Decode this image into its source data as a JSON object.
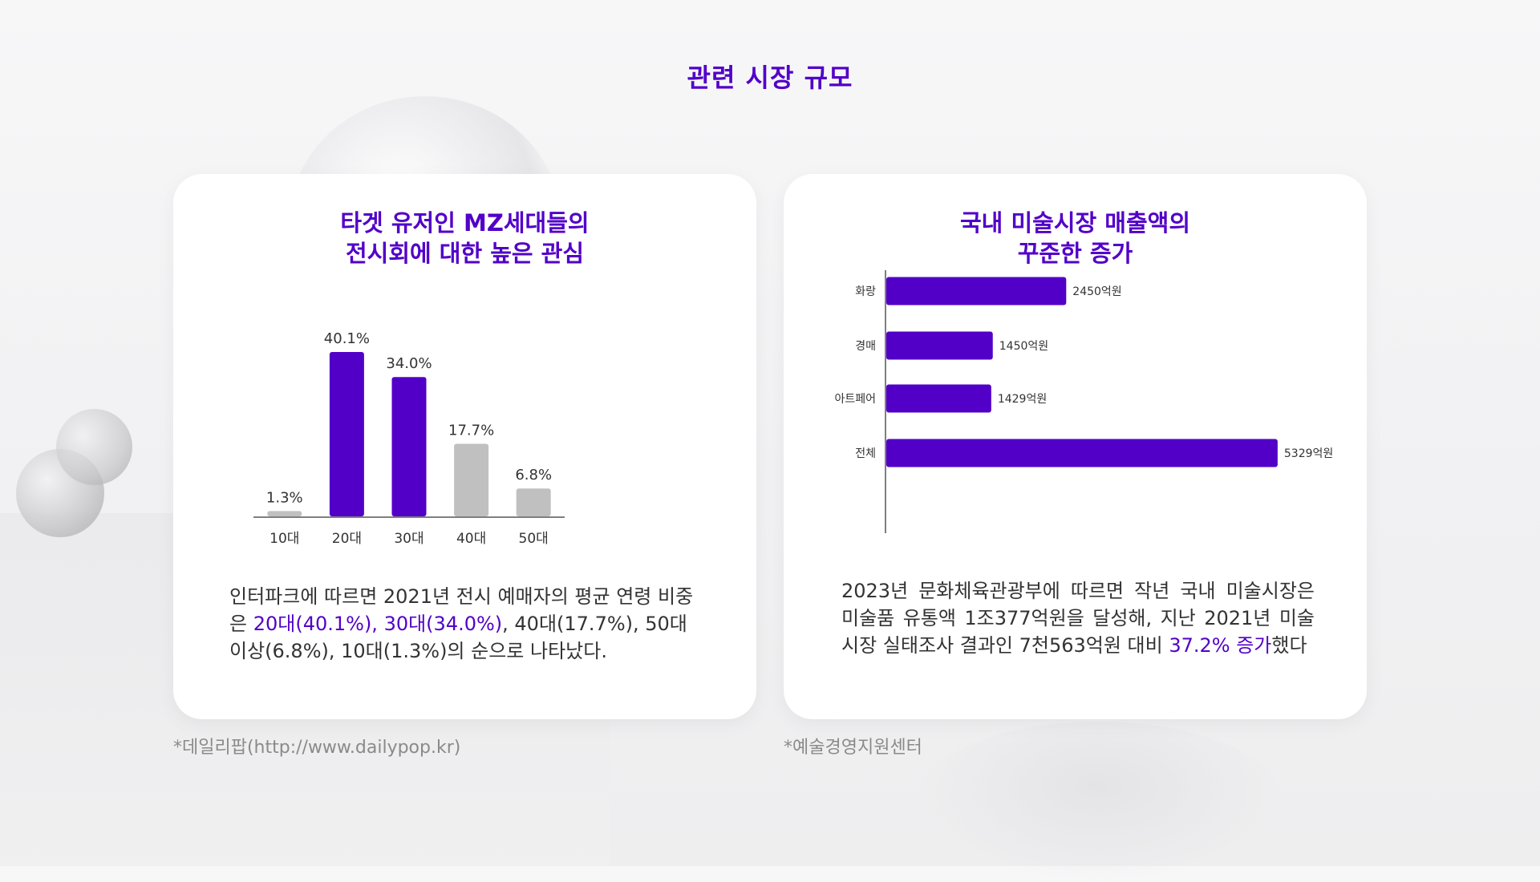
{
  "page": {
    "title": "관련 시장 규모"
  },
  "left_card": {
    "title_line1": "타겟 유저인 MZ세대들의",
    "title_line2": "전시회에 대한 높은 관심",
    "desc": {
      "p1": "인터파크에 따르면 2021년 전시 예매자의 평균 연령 비중은 ",
      "hl": "20대(40.1%), 30대(34.0%)",
      "p2": ", 40대(17.7%), 50대 이상(6.8%), 10대(1.3%)의 순으로 나타났다."
    },
    "source": "*데일리팝(http://www.dailypop.kr)"
  },
  "right_card": {
    "title_line1": "국내 미술시장 매출액의",
    "title_line2": "꾸준한 증가",
    "desc": {
      "p1": "2023년 문화체육관광부에 따르면 작년 국내 미술시장은 미술품 유통액 1조377억원을 달성해, 지난 2021년 미술시장 실태조사 결과인 7천563억원 대비 ",
      "hl": "37.2% 증가",
      "p2": "했다"
    },
    "source": "*예술경영지원센터"
  },
  "colors": {
    "accent": "#5200c8",
    "muted_bar": "#c0c0c0",
    "axis": "#555555"
  },
  "chart_data": [
    {
      "type": "bar",
      "categories": [
        "10대",
        "20대",
        "30대",
        "40대",
        "50대"
      ],
      "values": [
        1.3,
        40.1,
        34.0,
        17.7,
        6.8
      ],
      "value_labels": [
        "1.3%",
        "40.1%",
        "34.0%",
        "17.7%",
        "6.8%"
      ],
      "highlight": [
        false,
        true,
        true,
        false,
        false
      ],
      "ylim": [
        0,
        45
      ]
    },
    {
      "type": "bar",
      "orientation": "horizontal",
      "categories": [
        "화랑",
        "경매",
        "아트페어",
        "전체"
      ],
      "values": [
        2450,
        1450,
        1429,
        5329
      ],
      "value_labels": [
        "2450억원",
        "1450억원",
        "1429억원",
        "5329억원"
      ],
      "xlim": [
        0,
        5800
      ]
    }
  ]
}
